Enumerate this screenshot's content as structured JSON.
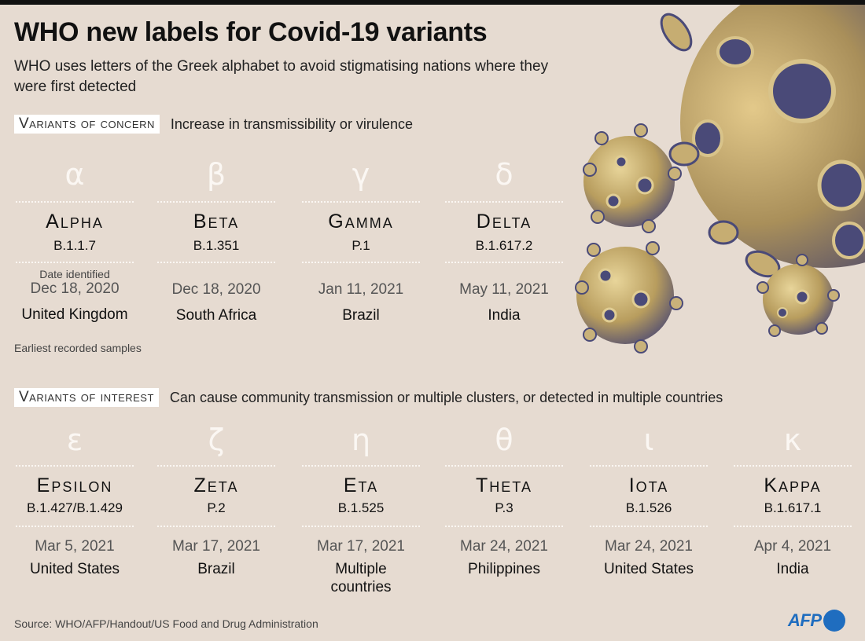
{
  "title": "WHO new labels for Covid-19 variants",
  "subtitle": "WHO uses letters of the Greek alphabet to avoid stigmatising nations where they were first detected",
  "concern": {
    "tag": "Variants of concern",
    "desc": "Increase in transmissibility or virulence",
    "date_caption": "Date identified",
    "country_caption": "Earliest recorded samples",
    "variants": [
      {
        "greek": "α",
        "name": "Alpha",
        "lineage": "B.1.1.7",
        "date": "Dec 18, 2020",
        "country": "United Kingdom"
      },
      {
        "greek": "β",
        "name": "Beta",
        "lineage": "B.1.351",
        "date": "Dec 18, 2020",
        "country": "South Africa"
      },
      {
        "greek": "γ",
        "name": "Gamma",
        "lineage": "P.1",
        "date": "Jan 11, 2021",
        "country": "Brazil"
      },
      {
        "greek": "δ",
        "name": "Delta",
        "lineage": "B.1.617.2",
        "date": "May 11, 2021",
        "country": "India"
      }
    ]
  },
  "interest": {
    "tag": "Variants of interest",
    "desc": "Can cause community transmission or multiple clusters, or detected in multiple countries",
    "variants": [
      {
        "greek": "ε",
        "name": "Epsilon",
        "lineage": "B.1.427/B.1.429",
        "date": "Mar 5, 2021",
        "country": "United States"
      },
      {
        "greek": "ζ",
        "name": "Zeta",
        "lineage": "P.2",
        "date": "Mar 17, 2021",
        "country": "Brazil"
      },
      {
        "greek": "η",
        "name": "Eta",
        "lineage": "B.1.525",
        "date": "Mar 17, 2021",
        "country": "Multiple countries"
      },
      {
        "greek": "θ",
        "name": "Theta",
        "lineage": "P.3",
        "date": "Mar 24, 2021",
        "country": "Philippines"
      },
      {
        "greek": "ι",
        "name": "Iota",
        "lineage": "B.1.526",
        "date": "Mar 24, 2021",
        "country": "United States"
      },
      {
        "greek": "κ",
        "name": "Kappa",
        "lineage": "B.1.617.1",
        "date": "Apr 4, 2021",
        "country": "India"
      }
    ]
  },
  "source": "Source: WHO/AFP/Handout/US Food and Drug Administration",
  "logo": "AFP",
  "colors": {
    "background": "#e6dbd1",
    "virus_body": "#c9b27a",
    "virus_shadow": "#4a4a78",
    "afp_blue": "#1f6dbf"
  }
}
